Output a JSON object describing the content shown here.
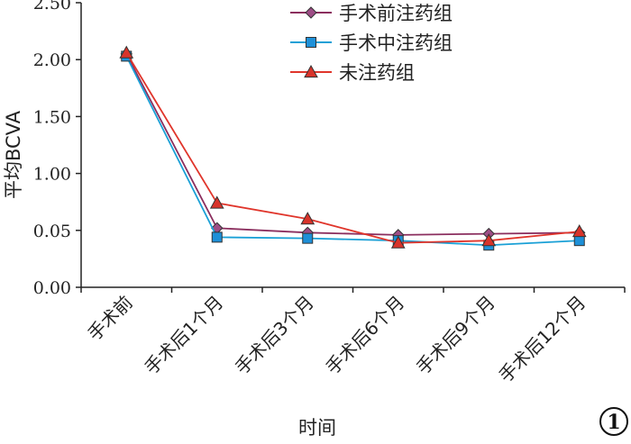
{
  "chart_data": {
    "type": "line",
    "xlabel": "时间",
    "ylabel": "平均BCVA",
    "categories": [
      "手术前",
      "手术后1个月",
      "手术后3个月",
      "手术后6个月",
      "手术后9个月",
      "手术后12个月"
    ],
    "y_tick_labels": [
      "0.00",
      "0.05",
      "1.00",
      "1.50",
      "2.00",
      "2.50"
    ],
    "ylim": [
      0,
      2.5
    ],
    "grid": false,
    "legend_position": "top-center",
    "panel_label": "1",
    "series": [
      {
        "name": "手术前注药组",
        "color": "#8b2e5e",
        "marker_fill": "#9e4d86",
        "marker": "diamond",
        "values": [
          2.05,
          0.52,
          0.48,
          0.46,
          0.47,
          0.48
        ]
      },
      {
        "name": "手术中注药组",
        "color": "#1aa0d6",
        "marker_fill": "#1e90d8",
        "marker": "square",
        "values": [
          2.03,
          0.44,
          0.43,
          0.41,
          0.37,
          0.41
        ]
      },
      {
        "name": "未注药组",
        "color": "#e0352b",
        "marker_fill": "#d8332a",
        "marker": "triangle",
        "values": [
          2.06,
          0.74,
          0.6,
          0.39,
          0.41,
          0.49
        ]
      }
    ]
  }
}
